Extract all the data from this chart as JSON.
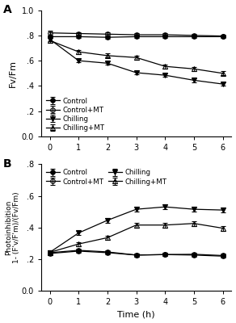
{
  "time": [
    0,
    1,
    2,
    3,
    4,
    5,
    6
  ],
  "A_control": [
    0.79,
    0.79,
    0.785,
    0.79,
    0.79,
    0.79,
    0.79
  ],
  "A_controlMT": [
    0.82,
    0.815,
    0.81,
    0.805,
    0.805,
    0.8,
    0.795
  ],
  "A_chilling": [
    0.77,
    0.6,
    0.58,
    0.505,
    0.485,
    0.445,
    0.415
  ],
  "A_chillingMT": [
    0.76,
    0.67,
    0.64,
    0.625,
    0.555,
    0.535,
    0.5
  ],
  "A_control_err": [
    0.012,
    0.01,
    0.01,
    0.01,
    0.01,
    0.01,
    0.01
  ],
  "A_controlMT_err": [
    0.018,
    0.012,
    0.012,
    0.012,
    0.012,
    0.01,
    0.01
  ],
  "A_chilling_err": [
    0.015,
    0.014,
    0.014,
    0.014,
    0.014,
    0.014,
    0.014
  ],
  "A_chillingMT_err": [
    0.018,
    0.016,
    0.016,
    0.016,
    0.016,
    0.016,
    0.016
  ],
  "B_control": [
    0.24,
    0.255,
    0.245,
    0.225,
    0.228,
    0.23,
    0.222
  ],
  "B_controlMT": [
    0.235,
    0.25,
    0.24,
    0.225,
    0.228,
    0.225,
    0.218
  ],
  "B_chilling": [
    0.242,
    0.365,
    0.445,
    0.515,
    0.53,
    0.515,
    0.51
  ],
  "B_chillingMT": [
    0.242,
    0.295,
    0.335,
    0.415,
    0.415,
    0.425,
    0.395
  ],
  "B_control_err": [
    0.01,
    0.01,
    0.01,
    0.01,
    0.01,
    0.01,
    0.01
  ],
  "B_controlMT_err": [
    0.01,
    0.01,
    0.01,
    0.01,
    0.01,
    0.01,
    0.01
  ],
  "B_chilling_err": [
    0.012,
    0.014,
    0.014,
    0.014,
    0.014,
    0.014,
    0.014
  ],
  "B_chillingMT_err": [
    0.012,
    0.012,
    0.012,
    0.015,
    0.015,
    0.015,
    0.015
  ],
  "panel_A_label": "A",
  "panel_B_label": "B",
  "ylabel_A": "Fv/Fm",
  "ylabel_B": "Photoinhibition\n1- (F'v/F'm)/(Fv/Fm)",
  "xlabel": "Time (h)",
  "ylim_A": [
    0.0,
    1.0
  ],
  "ylim_B": [
    0.0,
    0.8
  ],
  "yticks_A": [
    0.0,
    0.2,
    0.4,
    0.6,
    0.8,
    1.0
  ],
  "ytick_labels_A": [
    "0.0",
    ".2",
    ".4",
    ".6",
    ".8",
    "1.0"
  ],
  "yticks_B": [
    0.0,
    0.2,
    0.4,
    0.6,
    0.8
  ],
  "ytick_labels_B": [
    "0.0",
    ".2",
    ".4",
    ".6",
    ".8"
  ],
  "legend_A": [
    "Control",
    "Control+MT",
    "Chilling",
    "Chilling+MT"
  ],
  "line_color": "black"
}
